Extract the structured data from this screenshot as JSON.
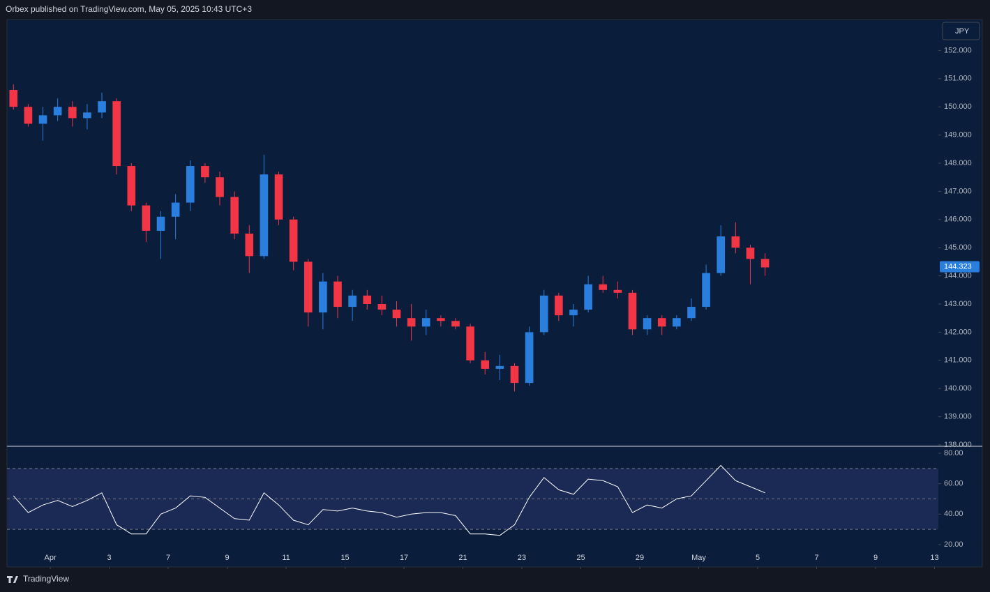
{
  "header": {
    "text": "Orbex published on TradingView.com, May 05, 2025 10:43 UTC+3"
  },
  "footer": {
    "brand": "TradingView"
  },
  "chart_data": [
    {
      "type": "candlestick",
      "currency": "JPY",
      "up_color": "#2a7fde",
      "down_color": "#f23645",
      "x": [
        -1.25,
        -0.75,
        -0.25,
        0.25,
        0.75,
        1.25,
        1.75,
        2.25,
        2.75,
        3.25,
        3.75,
        4.25,
        4.75,
        5.25,
        5.75,
        6.25,
        6.75,
        7.25,
        7.75,
        8.25,
        8.75,
        9.25,
        9.75,
        10.25,
        10.75,
        11.25,
        11.75,
        12.25,
        12.75,
        13.25,
        13.75,
        14.25,
        14.75,
        15.25,
        15.75,
        16.25,
        16.75,
        17.25,
        17.75,
        18.25,
        18.75,
        19.25,
        19.75,
        20.25,
        20.75,
        21.25,
        21.75,
        22.25,
        22.75,
        23.25,
        23.75,
        24.25
      ],
      "open": [
        150.6,
        150.0,
        149.4,
        149.7,
        150.0,
        149.6,
        149.8,
        150.2,
        147.9,
        146.5,
        145.6,
        146.1,
        146.6,
        147.9,
        147.5,
        146.8,
        145.5,
        144.7,
        147.6,
        146.0,
        144.5,
        142.7,
        143.8,
        142.9,
        143.3,
        143.0,
        142.8,
        142.5,
        142.2,
        142.5,
        142.4,
        142.2,
        141.0,
        140.7,
        140.8,
        140.2,
        142.0,
        143.3,
        142.6,
        142.8,
        143.7,
        143.5,
        143.4,
        142.1,
        142.5,
        142.2,
        142.5,
        142.9,
        144.1,
        145.4,
        145.0,
        144.6
      ],
      "high": [
        150.8,
        150.1,
        150.0,
        150.3,
        150.2,
        150.1,
        150.5,
        150.3,
        148.0,
        146.6,
        146.3,
        146.9,
        148.1,
        148.0,
        147.7,
        147.0,
        145.8,
        148.3,
        147.7,
        146.1,
        144.6,
        144.1,
        144.0,
        143.5,
        143.5,
        143.3,
        143.1,
        143.0,
        142.8,
        142.6,
        142.5,
        142.3,
        141.3,
        141.2,
        140.9,
        142.2,
        143.5,
        143.4,
        143.0,
        144.0,
        144.0,
        143.8,
        143.5,
        142.6,
        142.6,
        142.6,
        143.2,
        144.4,
        145.8,
        145.9,
        145.1,
        144.8
      ],
      "low": [
        149.9,
        149.3,
        148.8,
        149.5,
        149.3,
        149.2,
        149.6,
        147.6,
        146.3,
        145.2,
        144.6,
        145.3,
        146.3,
        147.3,
        146.5,
        145.3,
        144.1,
        144.6,
        145.8,
        144.2,
        142.2,
        142.1,
        142.5,
        142.4,
        142.8,
        142.6,
        142.2,
        141.7,
        141.9,
        142.2,
        142.1,
        140.9,
        140.5,
        140.3,
        139.9,
        140.1,
        141.9,
        142.4,
        142.2,
        142.7,
        143.4,
        143.2,
        141.9,
        141.9,
        141.9,
        142.1,
        142.4,
        142.8,
        144.0,
        144.8,
        143.7,
        144.0
      ],
      "close": [
        150.0,
        149.4,
        149.7,
        150.0,
        149.6,
        149.8,
        150.2,
        147.9,
        146.5,
        145.6,
        146.1,
        146.6,
        147.9,
        147.5,
        146.8,
        145.5,
        144.7,
        147.6,
        146.0,
        144.5,
        142.7,
        143.8,
        142.9,
        143.3,
        143.0,
        142.8,
        142.5,
        142.2,
        142.5,
        142.4,
        142.2,
        141.0,
        140.7,
        140.8,
        140.2,
        142.0,
        143.3,
        142.6,
        142.8,
        143.7,
        143.5,
        143.4,
        142.1,
        142.5,
        142.2,
        142.5,
        142.9,
        144.1,
        145.4,
        145.0,
        144.6,
        144.3
      ],
      "last_price": 144.323,
      "xlim": [
        -1.47,
        30.13
      ],
      "ylim": [
        137.95,
        153.1
      ],
      "yticks": [
        {
          "value": 138,
          "label": "138.000"
        },
        {
          "value": 139,
          "label": "139.000"
        },
        {
          "value": 140,
          "label": "140.000"
        },
        {
          "value": 141,
          "label": "141.000"
        },
        {
          "value": 142,
          "label": "142.000"
        },
        {
          "value": 143,
          "label": "143.000"
        },
        {
          "value": 144,
          "label": "144.000"
        },
        {
          "value": 145,
          "label": "145.000"
        },
        {
          "value": 146,
          "label": "146.000"
        },
        {
          "value": 147,
          "label": "147.000"
        },
        {
          "value": 148,
          "label": "148.000"
        },
        {
          "value": 149,
          "label": "149.000"
        },
        {
          "value": 150,
          "label": "150.000"
        },
        {
          "value": 151,
          "label": "151.000"
        },
        {
          "value": 152,
          "label": "152.000"
        }
      ]
    },
    {
      "type": "line",
      "color": "#ffffff",
      "band_color": "#1a2a55",
      "x": [
        -1.25,
        -0.75,
        -0.25,
        0.25,
        0.75,
        1.25,
        1.75,
        2.25,
        2.75,
        3.25,
        3.75,
        4.25,
        4.75,
        5.25,
        5.75,
        6.25,
        6.75,
        7.25,
        7.75,
        8.25,
        8.75,
        9.25,
        9.75,
        10.25,
        10.75,
        11.25,
        11.75,
        12.25,
        12.75,
        13.25,
        13.75,
        14.25,
        14.75,
        15.25,
        15.75,
        16.25,
        16.75,
        17.25,
        17.75,
        18.25,
        18.75,
        19.25,
        19.75,
        20.25,
        20.75,
        21.25,
        21.75,
        22.25,
        22.75,
        23.25,
        23.75,
        24.25
      ],
      "values": [
        52,
        41,
        46,
        49,
        45,
        49,
        54,
        33,
        27,
        27,
        40,
        44,
        52,
        51,
        44,
        37,
        36,
        54,
        46,
        36,
        33,
        43,
        42,
        44,
        42,
        41,
        38,
        40,
        41,
        41,
        39,
        27,
        27,
        26,
        33,
        51,
        64,
        56,
        53,
        63,
        62,
        58,
        41,
        46,
        44,
        50,
        52,
        62,
        72,
        62,
        58,
        54
      ],
      "levels": [
        70,
        50,
        30
      ],
      "xlim": [
        -1.47,
        30.13
      ],
      "ylim": [
        5.3,
        84.6
      ],
      "yticks": [
        {
          "value": 20,
          "label": "20.00"
        },
        {
          "value": 40,
          "label": "40.00"
        },
        {
          "value": 60,
          "label": "60.00"
        },
        {
          "value": 80,
          "label": "80.00"
        }
      ],
      "xticks": [
        {
          "value": 0,
          "label": "Apr"
        },
        {
          "value": 2,
          "label": "3"
        },
        {
          "value": 4,
          "label": "7"
        },
        {
          "value": 6,
          "label": "9"
        },
        {
          "value": 8,
          "label": "11"
        },
        {
          "value": 10,
          "label": "15"
        },
        {
          "value": 12,
          "label": "17"
        },
        {
          "value": 14,
          "label": "21"
        },
        {
          "value": 16,
          "label": "23"
        },
        {
          "value": 18,
          "label": "25"
        },
        {
          "value": 20,
          "label": "29"
        },
        {
          "value": 22,
          "label": "May"
        },
        {
          "value": 24,
          "label": "5"
        },
        {
          "value": 26,
          "label": "7"
        },
        {
          "value": 28,
          "label": "9"
        },
        {
          "value": 30,
          "label": "13"
        }
      ]
    }
  ]
}
